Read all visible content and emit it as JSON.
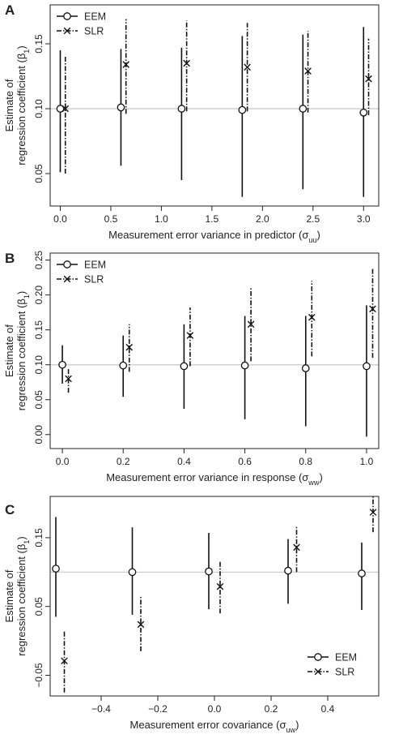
{
  "figure": {
    "panels": [
      "A",
      "B",
      "C"
    ]
  },
  "chart_data": [
    {
      "type": "scatter",
      "panel_label": "A",
      "xlabel": "Measurement error variance in predictor (σuu)",
      "ylabel": "Estimate of regression coefficient (β1)",
      "xlim": [
        -0.1,
        3.15
      ],
      "ylim": [
        0.025,
        0.18
      ],
      "x_ticks": [
        0.0,
        0.5,
        1.0,
        1.5,
        2.0,
        2.5,
        3.0
      ],
      "x_tick_labels": [
        "0.0",
        "0.5",
        "1.0",
        "1.5",
        "2.0",
        "2.5",
        "3.0"
      ],
      "y_ticks": [
        0.05,
        0.1,
        0.15
      ],
      "y_tick_labels": [
        "0.05",
        "0.10",
        "0.15"
      ],
      "reference_line": 0.1,
      "legend_position": "top-left",
      "series": [
        {
          "name": "EEM",
          "marker": "circle",
          "line": "solid",
          "x": [
            0.0,
            0.6,
            1.2,
            1.8,
            2.4,
            3.0
          ],
          "y": [
            0.1,
            0.101,
            0.1,
            0.099,
            0.1,
            0.097
          ],
          "lower": [
            0.051,
            0.056,
            0.045,
            0.032,
            0.038,
            0.032
          ],
          "upper": [
            0.145,
            0.146,
            0.147,
            0.156,
            0.157,
            0.163
          ]
        },
        {
          "name": "SLR",
          "marker": "cross",
          "line": "dotdash",
          "x": [
            0.05,
            0.65,
            1.25,
            1.85,
            2.45,
            3.05
          ],
          "y": [
            0.1,
            0.134,
            0.135,
            0.132,
            0.129,
            0.123
          ],
          "lower": [
            0.05,
            0.096,
            0.098,
            0.098,
            0.097,
            0.095
          ],
          "upper": [
            0.141,
            0.169,
            0.168,
            0.166,
            0.16,
            0.154
          ]
        }
      ]
    },
    {
      "type": "scatter",
      "panel_label": "B",
      "xlabel": "Measurement error variance in response (σww)",
      "ylabel": "Estimate of regression coefficient (β1)",
      "xlim": [
        -0.04,
        1.04
      ],
      "ylim": [
        -0.02,
        0.26
      ],
      "x_ticks": [
        0.0,
        0.2,
        0.4,
        0.6,
        0.8,
        1.0
      ],
      "x_tick_labels": [
        "0.0",
        "0.2",
        "0.4",
        "0.6",
        "0.8",
        "1.0"
      ],
      "y_ticks": [
        0.0,
        0.05,
        0.1,
        0.15,
        0.2,
        0.25
      ],
      "y_tick_labels": [
        "0.00",
        "0.05",
        "0.10",
        "0.15",
        "0.20",
        "0.25"
      ],
      "reference_line": 0.1,
      "legend_position": "top-left",
      "series": [
        {
          "name": "EEM",
          "marker": "circle",
          "line": "solid",
          "x": [
            0.0,
            0.2,
            0.4,
            0.6,
            0.8,
            1.0
          ],
          "y": [
            0.1,
            0.099,
            0.098,
            0.099,
            0.095,
            0.098
          ],
          "lower": [
            0.073,
            0.054,
            0.037,
            0.022,
            0.012,
            -0.003
          ],
          "upper": [
            0.128,
            0.142,
            0.158,
            0.17,
            0.17,
            0.185
          ]
        },
        {
          "name": "SLR",
          "marker": "cross",
          "line": "dotdash",
          "x": [
            0.02,
            0.22,
            0.42,
            0.62,
            0.82,
            1.02
          ],
          "y": [
            0.08,
            0.125,
            0.142,
            0.158,
            0.168,
            0.18
          ],
          "lower": [
            0.06,
            0.09,
            0.098,
            0.105,
            0.112,
            0.11
          ],
          "upper": [
            0.095,
            0.158,
            0.182,
            0.21,
            0.22,
            0.238
          ]
        }
      ]
    },
    {
      "type": "scatter",
      "panel_label": "C",
      "xlabel": "Measurement error covariance (σuw)",
      "ylabel": "Estimate of regression coefficient (β1)",
      "xlim": [
        -0.58,
        0.58
      ],
      "ylim": [
        -0.08,
        0.21
      ],
      "x_ticks": [
        -0.4,
        -0.2,
        0.0,
        0.2,
        0.4
      ],
      "x_tick_labels": [
        "−0.4",
        "−0.2",
        "0.0",
        "0.2",
        "0.4"
      ],
      "y_ticks": [
        -0.05,
        0.05,
        0.15
      ],
      "y_tick_labels": [
        "−0.05",
        "0.05",
        "0.15"
      ],
      "reference_line": 0.1,
      "legend_position": "bottom-right",
      "series": [
        {
          "name": "EEM",
          "marker": "circle",
          "line": "solid",
          "x": [
            -0.56,
            -0.29,
            -0.02,
            0.26,
            0.52
          ],
          "y": [
            0.105,
            0.1,
            0.101,
            0.102,
            0.098
          ],
          "lower": [
            0.035,
            0.038,
            0.046,
            0.054,
            0.045
          ],
          "upper": [
            0.18,
            0.165,
            0.157,
            0.148,
            0.143
          ]
        },
        {
          "name": "SLR",
          "marker": "cross",
          "line": "dotdash",
          "x": [
            -0.53,
            -0.26,
            0.02,
            0.29,
            0.56
          ],
          "y": [
            -0.029,
            0.024,
            0.079,
            0.136,
            0.187
          ],
          "lower": [
            -0.075,
            -0.015,
            0.04,
            0.1,
            0.158
          ],
          "upper": [
            0.015,
            0.065,
            0.116,
            0.167,
            0.21
          ]
        }
      ]
    }
  ]
}
